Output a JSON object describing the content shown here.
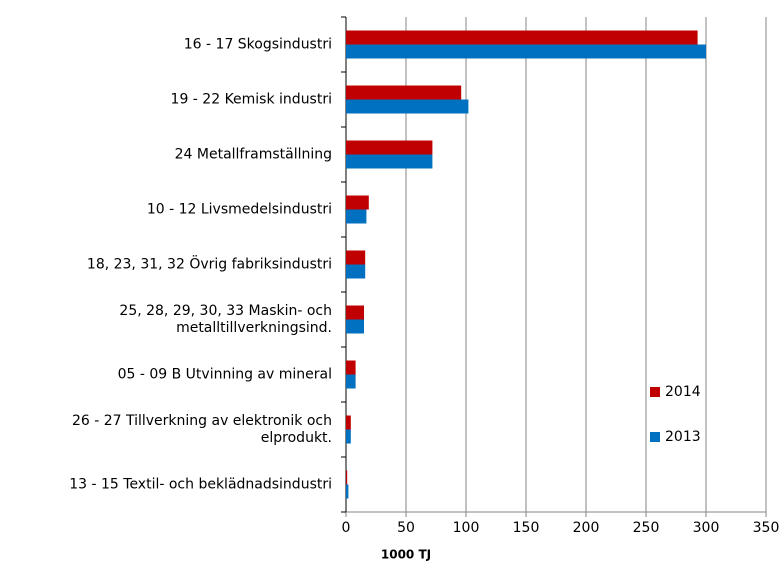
{
  "chart_data": {
    "type": "barh",
    "categories": [
      "16 - 17 Skogsindustri",
      "19 - 22 Kemisk industri",
      "24 Metallframställning",
      "10 - 12 Livsmedelsindustri",
      "18, 23, 31, 32 Övrig fabriksindustri",
      "25, 28, 29, 30, 33 Maskin- och\nmetalltillverkningsind.",
      "05 - 09 B Utvinning av mineral",
      "26 - 27 Tillverkning av elektronik och\nelprodukt.",
      "13 - 15 Textil- och beklädnadsindustri"
    ],
    "series": [
      {
        "name": "2014",
        "color": "#c00000",
        "values": [
          293,
          96,
          72,
          19,
          16,
          15,
          8,
          4,
          1
        ]
      },
      {
        "name": "2013",
        "color": "#0070c0",
        "values": [
          300,
          102,
          72,
          17,
          16,
          15,
          8,
          4,
          2
        ]
      }
    ],
    "xlabel": "1000 TJ",
    "xlim": [
      0,
      350
    ],
    "xticks": [
      0,
      50,
      100,
      150,
      200,
      250,
      300,
      350
    ],
    "grid": true,
    "legend": "right"
  }
}
